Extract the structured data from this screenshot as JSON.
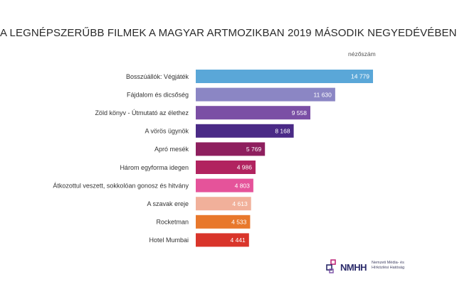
{
  "chart_data": {
    "type": "bar",
    "orientation": "horizontal",
    "title": "A LEGNÉPSZERŰBB FILMEK A MAGYAR ARTMOZIKBAN 2019 MÁSODIK NEGYEDÉVÉBEN",
    "value_header": "nézőszám",
    "categories": [
      "Bosszúállók: Végjáték",
      "Fájdalom és dicsőség",
      "Zöld könyv - Útmutató az élethez",
      "A vörös ügynök",
      "Apró mesék",
      "Három egyforma idegen",
      "Átkozottul veszett, sokkolóan gonosz és hitvány",
      "A szavak ereje",
      "Rocketman",
      "Hotel Mumbai"
    ],
    "values": [
      14779,
      11630,
      9558,
      8168,
      5769,
      4986,
      4803,
      4613,
      4533,
      4441
    ],
    "value_labels": [
      "14 779",
      "11 630",
      "9 558",
      "8 168",
      "5 769",
      "4 986",
      "4 803",
      "4 613",
      "4 533",
      "4 441"
    ],
    "bar_colors": [
      "#5aa7d8",
      "#8b86c4",
      "#7b4fa5",
      "#4a2a86",
      "#8e1f5e",
      "#b1235f",
      "#e5539a",
      "#f1b09a",
      "#e8782c",
      "#d9352b"
    ],
    "grid": false,
    "legend": "none"
  },
  "logo": {
    "brand": "NMHH",
    "org_lines": [
      "Nemzeti Média- és",
      "Hírközlési Hatóság"
    ]
  }
}
